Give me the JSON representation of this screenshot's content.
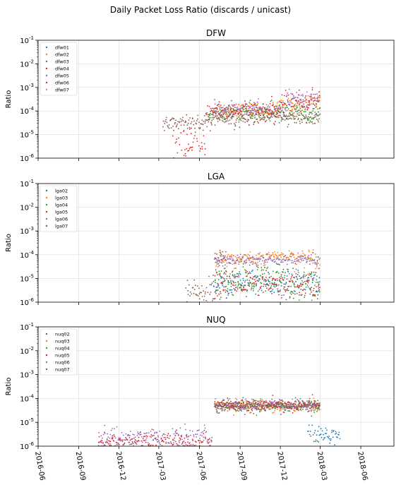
{
  "figure": {
    "suptitle": "Daily Packet Loss Ratio (discards / unicast)"
  },
  "series_colors": [
    "#1f77b4",
    "#ff7f0e",
    "#2ca02c",
    "#d62728",
    "#9467bd",
    "#8c564b",
    "#e377c2"
  ],
  "chart_data": [
    {
      "type": "scatter",
      "title": "DFW",
      "ylabel": "Ratio",
      "yscale": "log",
      "ylim": [
        1e-06,
        0.1
      ],
      "ytick_labels": [
        "10^-6",
        "10^-5",
        "10^-4",
        "10^-3",
        "10^-2",
        "10^-1"
      ],
      "xlim": [
        "2016-06-01",
        "2018-08-15"
      ],
      "legend_position": "upper-left",
      "series": [
        {
          "name": "dfw01",
          "segments": []
        },
        {
          "name": "dfw02",
          "segments": [
            {
              "start": "2017-07-01",
              "end": "2017-11-25",
              "y": 0.00011,
              "spread": 0.15
            },
            {
              "start": "2017-11-25",
              "end": "2018-02-01",
              "y": 0.00016,
              "spread": 0.15
            },
            {
              "start": "2018-02-01",
              "end": "2018-03-01",
              "y": 0.0003,
              "spread": 0.15
            }
          ]
        },
        {
          "name": "dfw03",
          "segments": [
            {
              "start": "2017-06-20",
              "end": "2017-12-31",
              "y": 8e-05,
              "spread": 0.2
            },
            {
              "start": "2018-01-01",
              "end": "2018-03-01",
              "y": 6e-05,
              "spread": 0.25
            }
          ]
        },
        {
          "name": "dfw04",
          "segments": [
            {
              "start": "2017-04-01",
              "end": "2017-06-15",
              "y": 2e-06,
              "spread": 0.4
            },
            {
              "start": "2017-06-15",
              "end": "2017-12-01",
              "y": 0.0001,
              "spread": 0.2
            },
            {
              "start": "2017-12-01",
              "end": "2018-03-01",
              "y": 0.00025,
              "spread": 0.2
            }
          ]
        },
        {
          "name": "dfw05",
          "segments": [
            {
              "start": "2017-07-01",
              "end": "2017-12-15",
              "y": 0.00011,
              "spread": 0.15
            },
            {
              "start": "2017-12-15",
              "end": "2018-03-01",
              "y": 0.0003,
              "spread": 0.2
            }
          ]
        },
        {
          "name": "dfw06",
          "segments": [
            {
              "start": "2017-03-10",
              "end": "2017-07-01",
              "y": 3.3e-05,
              "spread": 0.2
            },
            {
              "start": "2017-07-01",
              "end": "2018-03-01",
              "y": 5e-05,
              "spread": 0.15
            }
          ]
        },
        {
          "name": "dfw07",
          "segments": []
        }
      ]
    },
    {
      "type": "scatter",
      "title": "LGA",
      "ylabel": "Ratio",
      "yscale": "log",
      "ylim": [
        1e-06,
        0.1
      ],
      "ytick_labels": [
        "10^-6",
        "10^-5",
        "10^-4",
        "10^-3",
        "10^-2",
        "10^-1"
      ],
      "xlim": [
        "2016-06-01",
        "2018-08-15"
      ],
      "legend_position": "upper-left",
      "series": [
        {
          "name": "lga02",
          "segments": [
            {
              "start": "2017-07-01",
              "end": "2018-03-01",
              "y": 6e-06,
              "spread": 0.3
            }
          ]
        },
        {
          "name": "lga03",
          "segments": [
            {
              "start": "2017-07-05",
              "end": "2017-11-01",
              "y": 6e-05,
              "spread": 0.15
            },
            {
              "start": "2017-11-01",
              "end": "2018-01-01",
              "y": 9e-05,
              "spread": 0.1
            },
            {
              "start": "2018-01-01",
              "end": "2018-03-01",
              "y": 7e-05,
              "spread": 0.2
            }
          ]
        },
        {
          "name": "lga04",
          "segments": [
            {
              "start": "2017-07-05",
              "end": "2018-03-01",
              "y": 8e-06,
              "spread": 0.35
            }
          ]
        },
        {
          "name": "lga05",
          "segments": [
            {
              "start": "2017-07-05",
              "end": "2018-03-01",
              "y": 5e-06,
              "spread": 0.35
            }
          ]
        },
        {
          "name": "lga06",
          "segments": [
            {
              "start": "2017-07-05",
              "end": "2018-03-01",
              "y": 6e-05,
              "spread": 0.12
            }
          ]
        },
        {
          "name": "lga07",
          "segments": [
            {
              "start": "2017-05-01",
              "end": "2017-07-05",
              "y": 2e-06,
              "spread": 0.3
            },
            {
              "start": "2017-07-05",
              "end": "2017-08-01",
              "y": 5e-05,
              "spread": 0.3
            }
          ]
        }
      ]
    },
    {
      "type": "scatter",
      "title": "NUQ",
      "ylabel": "Ratio",
      "yscale": "log",
      "ylim": [
        1e-06,
        0.1
      ],
      "ytick_labels": [
        "10^-6",
        "10^-5",
        "10^-4",
        "10^-3",
        "10^-2",
        "10^-1"
      ],
      "xlim": [
        "2016-06-01",
        "2018-08-15"
      ],
      "xtick_labels": [
        "2016-06",
        "2016-09",
        "2016-12",
        "2017-03",
        "2017-06",
        "2017-09",
        "2017-12",
        "2018-03",
        "2018-06"
      ],
      "legend_position": "upper-left",
      "series": [
        {
          "name": "nuq02",
          "segments": [
            {
              "start": "2018-02-01",
              "end": "2018-04-15",
              "y": 3e-06,
              "spread": 0.25
            }
          ]
        },
        {
          "name": "nuq03",
          "segments": [
            {
              "start": "2017-07-05",
              "end": "2018-03-01",
              "y": 5e-05,
              "spread": 0.12
            }
          ]
        },
        {
          "name": "nuq04",
          "segments": [
            {
              "start": "2017-07-05",
              "end": "2018-03-01",
              "y": 5e-05,
              "spread": 0.12
            }
          ]
        },
        {
          "name": "nuq05",
          "segments": [
            {
              "start": "2016-10-15",
              "end": "2017-06-30",
              "y": 1.5e-06,
              "spread": 0.2
            },
            {
              "start": "2017-07-05",
              "end": "2018-03-01",
              "y": 5e-05,
              "spread": 0.12
            }
          ]
        },
        {
          "name": "nuq06",
          "segments": [
            {
              "start": "2016-10-15",
              "end": "2017-06-30",
              "y": 2e-06,
              "spread": 0.25
            },
            {
              "start": "2017-07-05",
              "end": "2018-03-01",
              "y": 5e-05,
              "spread": 0.12
            }
          ]
        },
        {
          "name": "nuq07",
          "segments": [
            {
              "start": "2017-07-05",
              "end": "2018-03-01",
              "y": 5e-05,
              "spread": 0.12
            }
          ]
        }
      ]
    }
  ]
}
